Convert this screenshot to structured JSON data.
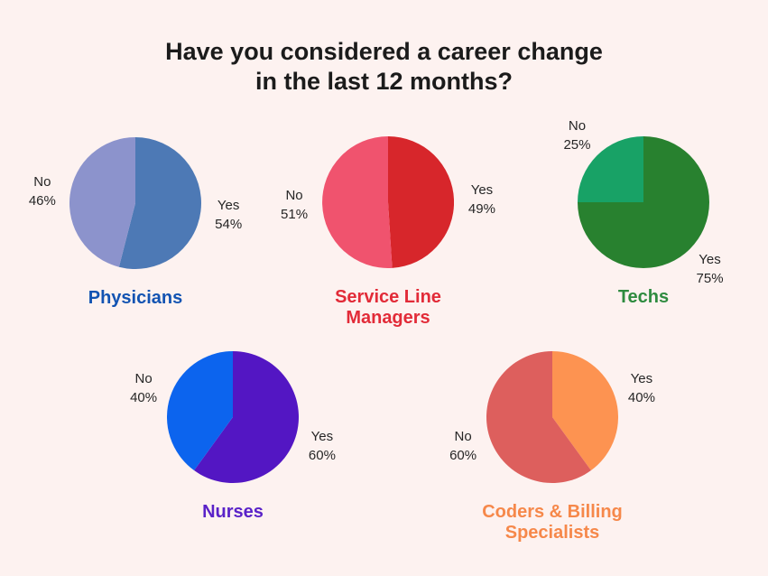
{
  "title": {
    "line1": "Have you considered a career change",
    "line2": "in the last 12 months?"
  },
  "colors": {
    "background": "#fdf2f0",
    "title_text": "#1b1b1b",
    "slice_label_text": "#262626"
  },
  "chart_data": {
    "type": "pie",
    "title": "Have you considered a career change in the last 12 months?",
    "answers": {
      "yes": "Yes",
      "no": "No"
    },
    "unit": "%",
    "legend": "none",
    "slice_start": "12 o'clock, yes slice clockwise",
    "pies": [
      {
        "group": "Physicians",
        "group_lines": [
          "Physicians"
        ],
        "yes_pct": 54,
        "no_pct": 46,
        "yes_color": "#4d79b5",
        "no_color": "#8c93cc",
        "group_label_color": "#1253b2"
      },
      {
        "group": "Service Line Managers",
        "group_lines": [
          "Service Line",
          "Managers"
        ],
        "yes_pct": 49,
        "no_pct": 51,
        "yes_color": "#d7262b",
        "no_color": "#f0536e",
        "group_label_color": "#e22b38"
      },
      {
        "group": "Techs",
        "group_lines": [
          "Techs"
        ],
        "yes_pct": 75,
        "no_pct": 25,
        "yes_color": "#28812f",
        "no_color": "#18a266",
        "group_label_color": "#2e8b3f"
      },
      {
        "group": "Nurses",
        "group_lines": [
          "Nurses"
        ],
        "yes_pct": 60,
        "no_pct": 40,
        "yes_color": "#5316c3",
        "no_color": "#0c64ee",
        "group_label_color": "#5a22c8"
      },
      {
        "group": "Coders & Billing Specialists",
        "group_lines": [
          "Coders & Billing",
          "Specialists"
        ],
        "yes_pct": 40,
        "no_pct": 60,
        "yes_color": "#fd9351",
        "no_color": "#dd5f5d",
        "group_label_color": "#f6884a"
      }
    ]
  }
}
